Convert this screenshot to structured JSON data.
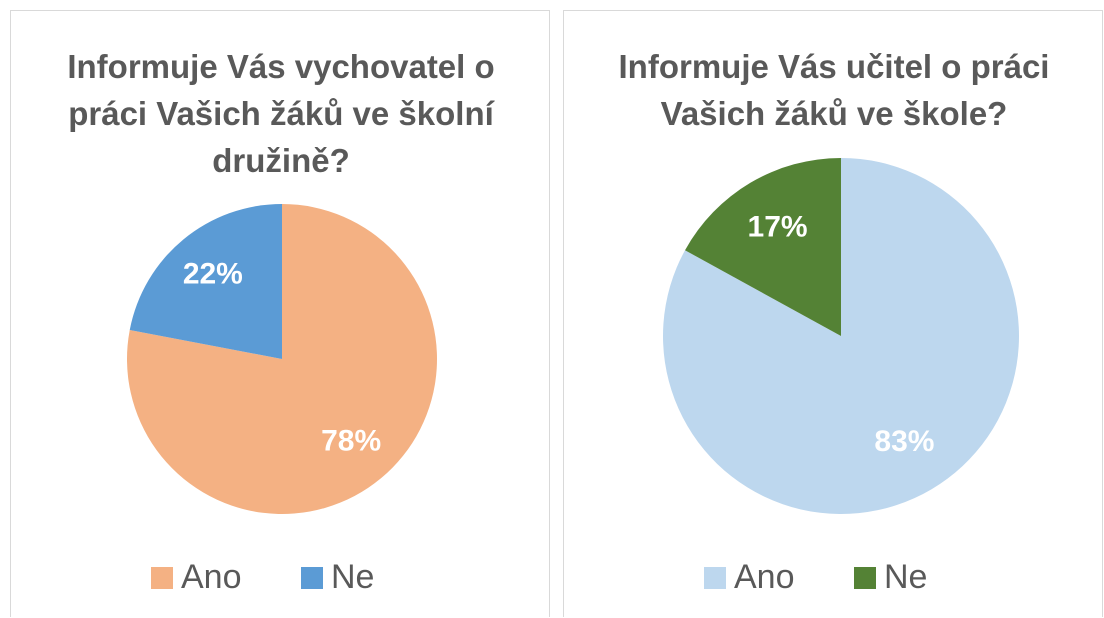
{
  "chart_data": [
    {
      "type": "pie",
      "title": "Informuje Vás vychovatel o práci Vašich žáků ve školní družině?",
      "categories": [
        "Ano",
        "Ne"
      ],
      "values": [
        78,
        22
      ],
      "value_labels": [
        "78%",
        "22%"
      ],
      "colors": [
        "#f4b183",
        "#5b9bd5"
      ],
      "legend": "bottom"
    },
    {
      "type": "pie",
      "title": "Informuje Vás učitel o práci Vašich žáků ve škole?",
      "categories": [
        "Ano",
        "Ne"
      ],
      "values": [
        83,
        17
      ],
      "value_labels": [
        "83%",
        "17%"
      ],
      "colors": [
        "#bdd7ee",
        "#548235"
      ],
      "legend": "bottom"
    }
  ]
}
